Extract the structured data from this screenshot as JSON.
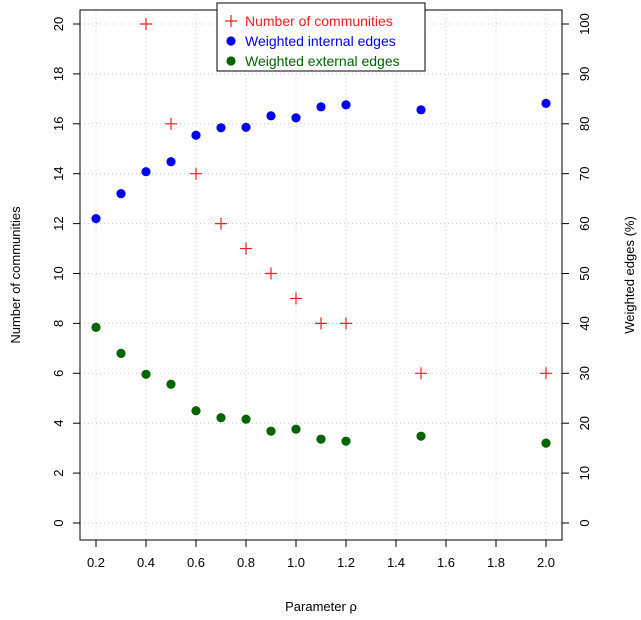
{
  "chart_data": {
    "type": "scatter",
    "xlabel": "Parameter ρ",
    "ylabel_left": "Number of communities",
    "ylabel_right": "Weighted edges (%)",
    "xlim": [
      0.2,
      2.0
    ],
    "xticks": [
      0.2,
      0.4,
      0.6,
      0.8,
      1.0,
      1.2,
      1.4,
      1.6,
      1.8,
      2.0
    ],
    "xtick_labels": [
      "0.2",
      "0.4",
      "0.6",
      "0.8",
      "1.0",
      "1.2",
      "1.4",
      "1.6",
      "1.8",
      "2.0"
    ],
    "ylim_left": [
      0,
      20
    ],
    "yticks_left": [
      0,
      2,
      4,
      6,
      8,
      10,
      12,
      14,
      16,
      18,
      20
    ],
    "ylim_right": [
      0,
      100
    ],
    "yticks_right": [
      0,
      10,
      20,
      30,
      40,
      50,
      60,
      70,
      80,
      90,
      100
    ],
    "grid": true,
    "legend_position": "top-center",
    "series": [
      {
        "name": "Number of communities",
        "axis": "left",
        "marker": "plus",
        "color": "#ee2020",
        "x": [
          0.4,
          0.5,
          0.6,
          0.7,
          0.8,
          0.9,
          1.0,
          1.1,
          1.2,
          1.5,
          2.0
        ],
        "y": [
          20,
          16,
          14,
          12,
          11,
          10,
          9,
          8,
          8,
          6,
          6
        ]
      },
      {
        "name": "Weighted internal edges",
        "axis": "right",
        "marker": "dot",
        "color": "#0000ee",
        "x": [
          0.2,
          0.3,
          0.4,
          0.5,
          0.6,
          0.7,
          0.8,
          0.9,
          1.0,
          1.1,
          1.2,
          1.5,
          2.0
        ],
        "y": [
          61,
          66,
          70.4,
          72.4,
          77.7,
          79.2,
          79.3,
          81.6,
          81.2,
          83.4,
          83.8,
          82.8,
          84.1
        ]
      },
      {
        "name": "Weighted external edges",
        "axis": "right",
        "marker": "dot",
        "color": "#006400",
        "x": [
          0.2,
          0.3,
          0.4,
          0.5,
          0.6,
          0.7,
          0.8,
          0.9,
          1.0,
          1.1,
          1.2,
          1.5,
          2.0
        ],
        "y": [
          39.2,
          34,
          29.8,
          27.8,
          22.5,
          21.1,
          20.8,
          18.4,
          18.8,
          16.8,
          16.4,
          17.4,
          16
        ]
      }
    ]
  }
}
